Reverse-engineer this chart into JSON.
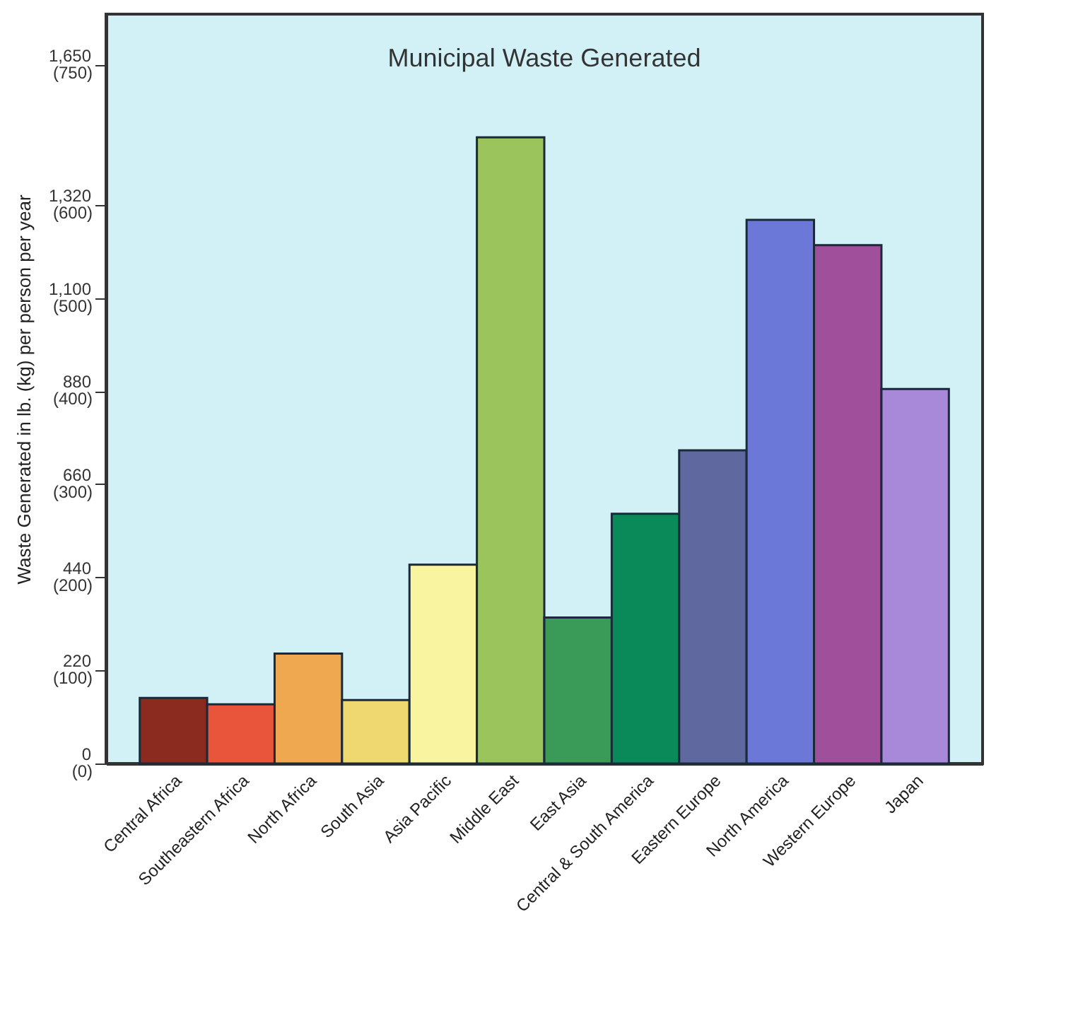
{
  "chart_data": {
    "type": "bar",
    "title": "Municipal Waste Generated",
    "ylabel": "Waste Generated in lb. (kg) per person per year",
    "categories": [
      "Central Africa",
      "Southeastern Africa",
      "North Africa",
      "South Asia",
      "Asia Pacific",
      "Middle East",
      "East Asia",
      "Central & South America",
      "Eastern Europe",
      "North America",
      "Western Europe",
      "Japan"
    ],
    "values": [
      155,
      140,
      260,
      150,
      470,
      1480,
      345,
      590,
      740,
      1285,
      1225,
      885
    ],
    "colors": [
      "#8b2a1e",
      "#e8553a",
      "#f0a850",
      "#f0d870",
      "#f8f4a0",
      "#9cc45c",
      "#3a9a58",
      "#0a8a58",
      "#6068a0",
      "#6c78d8",
      "#a0509a",
      "#a888d8"
    ],
    "ylim": [
      0,
      1771
    ],
    "yticks": [
      0,
      220,
      440,
      660,
      880,
      {
        "value": 1100,
        "label": "1,100"
      },
      {
        "value": 1320,
        "label": "1,320"
      },
      {
        "value": 1650,
        "label": "1,650"
      }
    ],
    "y2lim": [
      0,
      805
    ],
    "y2ticks": [
      {
        "value": 0,
        "label": "(0)"
      },
      {
        "value": 100,
        "label": "(100)"
      },
      {
        "value": 200,
        "label": "(200)"
      },
      {
        "value": 300,
        "label": "(300)"
      },
      {
        "value": 400,
        "label": "(400)"
      },
      {
        "value": 500,
        "label": "(500)"
      },
      {
        "value": 600,
        "label": "(600)"
      },
      {
        "value": 750,
        "label": "(750)"
      }
    ],
    "grid": false
  }
}
